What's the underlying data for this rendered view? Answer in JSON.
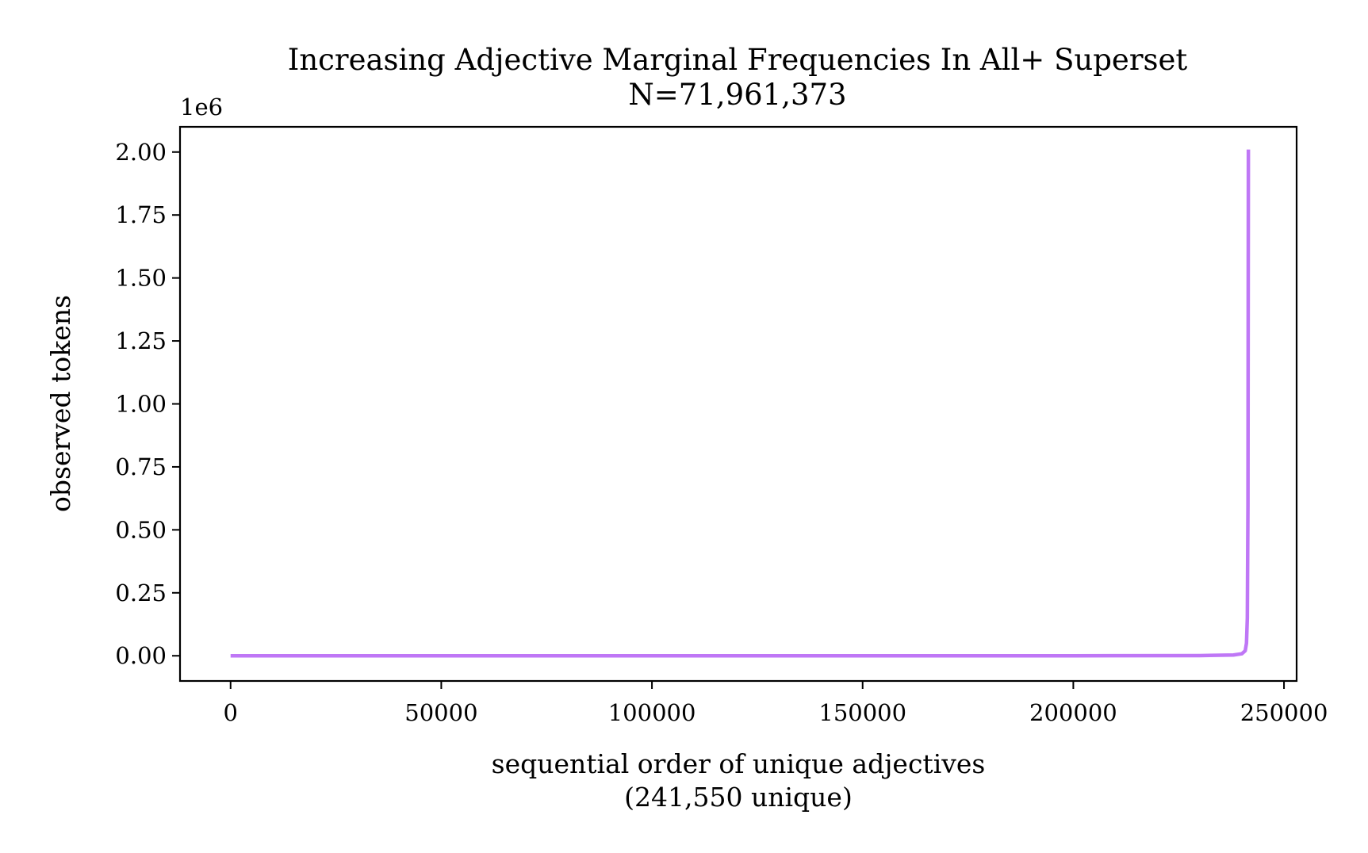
{
  "chart_data": {
    "type": "line",
    "title": "Increasing Adjective Marginal Frequencies In All+ Superset",
    "subtitle": "N=71,961,373",
    "xlabel": "sequential order of unique adjectives",
    "xlabel_sub": "(241,550 unique)",
    "ylabel": "observed tokens",
    "y_offset_label": "1e6",
    "xlim": [
      -12000,
      253000
    ],
    "ylim": [
      -100000,
      2100000
    ],
    "x_ticks": [
      0,
      50000,
      100000,
      150000,
      200000,
      250000
    ],
    "x_tick_labels": [
      "0",
      "50000",
      "100000",
      "150000",
      "200000",
      "250000"
    ],
    "y_ticks": [
      0,
      250000,
      500000,
      750000,
      1000000,
      1250000,
      1500000,
      1750000,
      2000000
    ],
    "y_tick_labels": [
      "0.00",
      "0.25",
      "0.50",
      "0.75",
      "1.00",
      "1.25",
      "1.50",
      "1.75",
      "2.00"
    ],
    "grid": false,
    "series": [
      {
        "color": "#bf77f6",
        "x": [
          0,
          50000,
          100000,
          150000,
          200000,
          230000,
          238000,
          240000,
          240800,
          241100,
          241300,
          241450,
          241550
        ],
        "y": [
          1,
          2,
          5,
          12,
          60,
          700,
          3000,
          8000,
          20000,
          50000,
          150000,
          600000,
          2010000
        ]
      }
    ]
  }
}
